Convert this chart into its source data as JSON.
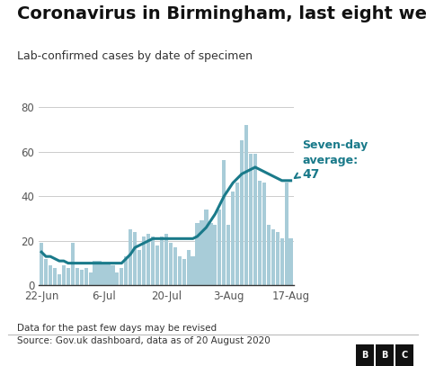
{
  "title": "Coronavirus in Birmingham, last eight weeks",
  "subtitle": "Lab-confirmed cases by date of specimen",
  "footnote1": "Data for the past few days may be revised",
  "footnote2": "Source: Gov.uk dashboard, data as of 20 August 2020",
  "annotation_line1": "Seven-day",
  "annotation_line2": "average:",
  "annotation_line3": "47",
  "bar_color": "#a8ccd8",
  "line_color": "#1a7a8a",
  "title_color": "#111111",
  "subtitle_color": "#333333",
  "footnote_color": "#333333",
  "annotation_color": "#1a7a8a",
  "background_color": "#ffffff",
  "grid_color": "#cccccc",
  "spine_color": "#333333",
  "ylim": [
    0,
    82
  ],
  "yticks": [
    0,
    20,
    40,
    60,
    80
  ],
  "xtick_labels": [
    "22-Jun",
    "6-Jul",
    "20-Jul",
    "3-Aug",
    "17-Aug"
  ],
  "xtick_positions": [
    0,
    14,
    28,
    42,
    56
  ],
  "bar_values": [
    19,
    12,
    9,
    8,
    5,
    9,
    8,
    19,
    8,
    7,
    8,
    6,
    11,
    11,
    10,
    10,
    9,
    6,
    8,
    13,
    25,
    24,
    16,
    22,
    23,
    22,
    18,
    22,
    23,
    19,
    17,
    13,
    12,
    16,
    13,
    28,
    29,
    34,
    28,
    27,
    34,
    56,
    27,
    42,
    46,
    65,
    72,
    59,
    59,
    47,
    46,
    27,
    25,
    24,
    21,
    46,
    21
  ],
  "line_values": [
    15,
    13,
    13,
    12,
    11,
    11,
    10,
    10,
    10,
    10,
    10,
    10,
    10,
    10,
    10,
    10,
    10,
    10,
    10,
    12,
    14,
    17,
    18,
    19,
    20,
    21,
    21,
    21,
    21,
    21,
    21,
    21,
    21,
    21,
    21,
    22,
    24,
    26,
    29,
    32,
    36,
    40,
    43,
    46,
    48,
    50,
    51,
    52,
    53,
    52,
    51,
    50,
    49,
    48,
    47,
    47,
    47
  ],
  "title_fontsize": 14,
  "subtitle_fontsize": 9,
  "tick_fontsize": 8.5,
  "annotation_fontsize": 9,
  "footnote_fontsize": 7.5
}
